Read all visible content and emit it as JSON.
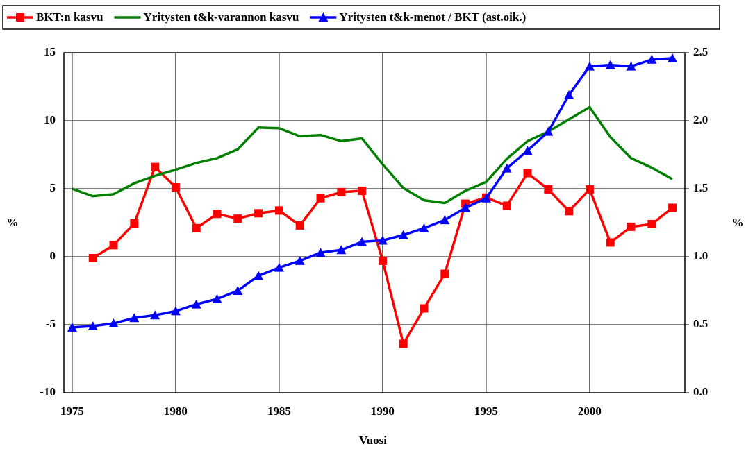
{
  "chart_data": {
    "type": "line",
    "x_label": "Vuosi",
    "y_label": "%",
    "y2_label": "%",
    "x": [
      1975,
      1976,
      1977,
      1978,
      1979,
      1980,
      1981,
      1982,
      1983,
      1984,
      1985,
      1986,
      1987,
      1988,
      1989,
      1990,
      1991,
      1992,
      1993,
      1994,
      1995,
      1996,
      1997,
      1998,
      1999,
      2000,
      2001,
      2002,
      2003,
      2004
    ],
    "xlim": [
      1974.6,
      2004.6
    ],
    "xticks": [
      1975,
      1980,
      1985,
      1990,
      1995,
      2000
    ],
    "ylim": [
      -10,
      15
    ],
    "yticks": [
      -10,
      -5,
      0,
      5,
      10,
      15
    ],
    "y2lim": [
      0,
      2.5
    ],
    "y2ticks": [
      {
        "value": 0,
        "label": "0.0"
      },
      {
        "value": 0.5,
        "label": "0.5"
      },
      {
        "value": 1,
        "label": "1.0"
      },
      {
        "value": 1.5,
        "label": "1.5"
      },
      {
        "value": 2,
        "label": "2.0"
      },
      {
        "value": 2.5,
        "label": "2.5"
      }
    ],
    "grid": true,
    "legend": "top",
    "series": [
      {
        "name": "BKT:n kasvu",
        "color": "#ff0000",
        "marker": "square",
        "values": [
          null,
          -0.1,
          0.85,
          2.45,
          6.6,
          5.1,
          2.1,
          3.15,
          2.8,
          3.2,
          3.4,
          2.3,
          4.3,
          4.75,
          4.85,
          -0.3,
          -6.4,
          -3.8,
          -1.25,
          3.9,
          4.35,
          3.75,
          6.15,
          4.95,
          3.35,
          4.95,
          1.05,
          2.2,
          2.4,
          3.6
        ]
      },
      {
        "name": "Yritysten t&k-varannon kasvu",
        "color": "#008000",
        "marker": "none",
        "values": [
          5.0,
          4.45,
          4.6,
          5.4,
          5.95,
          6.4,
          6.9,
          7.25,
          7.9,
          9.5,
          9.45,
          8.85,
          8.95,
          8.5,
          8.7,
          6.8,
          5.05,
          4.15,
          3.95,
          4.85,
          5.5,
          7.2,
          8.5,
          9.2,
          10.1,
          11.0,
          8.8,
          7.25,
          6.55,
          5.7
        ]
      },
      {
        "name": "Yritysten t&k-menot / BKT (ast.oik.)",
        "color": "#0000ff",
        "marker": "triangle",
        "axis": "y2",
        "values": [
          0.48,
          0.49,
          0.51,
          0.55,
          0.57,
          0.6,
          0.65,
          0.69,
          0.75,
          0.86,
          0.92,
          0.97,
          1.03,
          1.05,
          1.11,
          1.12,
          1.16,
          1.21,
          1.27,
          1.36,
          1.43,
          1.65,
          1.78,
          1.92,
          2.19,
          2.4,
          2.41,
          2.4,
          2.45,
          2.46
        ]
      }
    ]
  }
}
